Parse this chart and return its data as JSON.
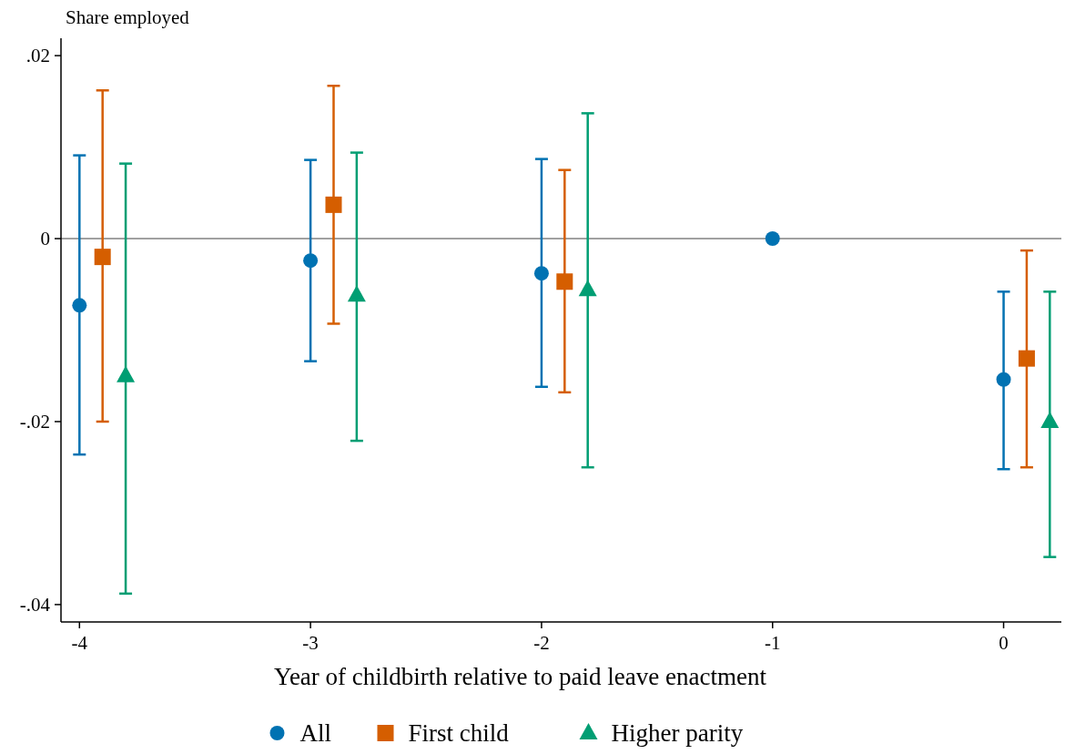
{
  "chart_data": {
    "type": "scatter",
    "ylabel": "Share employed",
    "xlabel": "Year of childbirth relative to paid leave enactment",
    "xlim": [
      -4.08,
      0.25
    ],
    "xticks": [
      -4,
      -3,
      -2,
      -1,
      0
    ],
    "ylim": [
      -0.0419,
      0.0219
    ],
    "yticks": [
      {
        "value": 0.02,
        "label": ".02"
      },
      0,
      {
        "value": -0.02,
        "label": "-.02"
      },
      {
        "value": -0.04,
        "label": "-.04"
      }
    ],
    "ref_lines": [
      {
        "axis": "y",
        "value": 0,
        "color": "#a0a0a0"
      }
    ],
    "legend": "bottom",
    "grid": false,
    "series": [
      {
        "name": "All",
        "color": "#0072b2",
        "marker": "circle",
        "x": [
          -4,
          -3,
          -2,
          -1,
          0
        ],
        "values": [
          -0.0073,
          -0.0024,
          -0.0038,
          0,
          -0.0154
        ],
        "errors": [
          [
            -0.0236,
            0.0091
          ],
          [
            -0.0134,
            0.0086
          ],
          [
            -0.0162,
            0.0087
          ],
          null,
          [
            -0.0252,
            -0.0058
          ]
        ]
      },
      {
        "name": "First child",
        "color": "#d55e00",
        "marker": "square",
        "x": [
          -3.9,
          -2.9,
          -1.9,
          0.1
        ],
        "values": [
          -0.002,
          0.0037,
          -0.0047,
          -0.0131
        ],
        "errors": [
          [
            -0.02,
            0.0162
          ],
          [
            -0.0093,
            0.0167
          ],
          [
            -0.0168,
            0.0075
          ],
          [
            -0.025,
            -0.0013
          ]
        ]
      },
      {
        "name": "Higher parity",
        "color": "#009e73",
        "marker": "triangle",
        "x": [
          -3.8,
          -2.8,
          -1.8,
          0.2
        ],
        "values": [
          -0.015,
          -0.0062,
          -0.0056,
          -0.02
        ],
        "errors": [
          [
            -0.0388,
            0.0082
          ],
          [
            -0.0221,
            0.0094
          ],
          [
            -0.025,
            0.0137
          ],
          [
            -0.0348,
            -0.0058
          ]
        ]
      }
    ]
  }
}
